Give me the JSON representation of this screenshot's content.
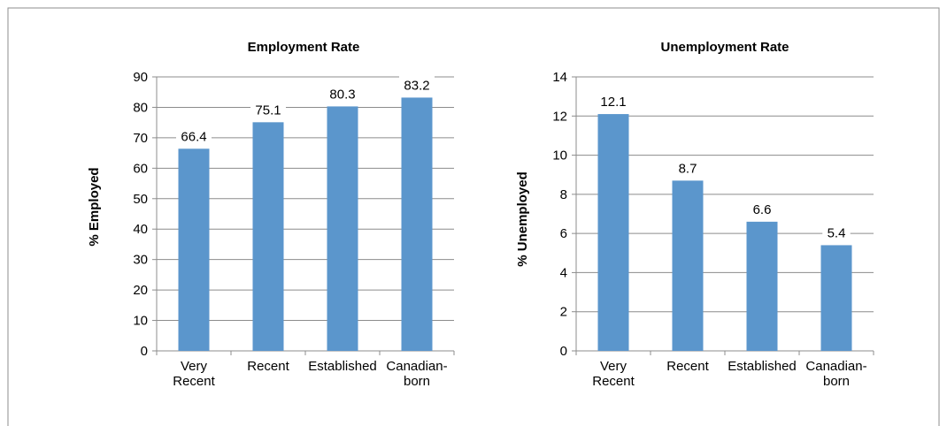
{
  "chart_data": [
    {
      "type": "bar",
      "title": "Employment Rate",
      "xlabel": "",
      "ylabel": "% Employed",
      "categories": [
        [
          "Very",
          "Recent"
        ],
        [
          "Recent"
        ],
        [
          "Established"
        ],
        [
          "Canadian-",
          "born"
        ]
      ],
      "values": [
        66.4,
        75.1,
        80.3,
        83.2
      ],
      "data_labels": [
        "66.4",
        "75.1",
        "80.3",
        "83.2"
      ],
      "ylim": [
        0,
        90
      ],
      "yticks": [
        0,
        10,
        20,
        30,
        40,
        50,
        60,
        70,
        80,
        90
      ],
      "grid": true,
      "bar_color": "#5b96cc"
    },
    {
      "type": "bar",
      "title": "Unemployment Rate",
      "xlabel": "",
      "ylabel": "% Unemployed",
      "categories": [
        [
          "Very",
          "Recent"
        ],
        [
          "Recent"
        ],
        [
          "Established"
        ],
        [
          "Canadian-",
          "born"
        ]
      ],
      "values": [
        12.1,
        8.7,
        6.6,
        5.4
      ],
      "data_labels": [
        "12.1",
        "8.7",
        "6.6",
        "5.4"
      ],
      "ylim": [
        0,
        14
      ],
      "yticks": [
        0,
        2,
        4,
        6,
        8,
        10,
        12,
        14
      ],
      "grid": true,
      "bar_color": "#5b96cc"
    }
  ]
}
